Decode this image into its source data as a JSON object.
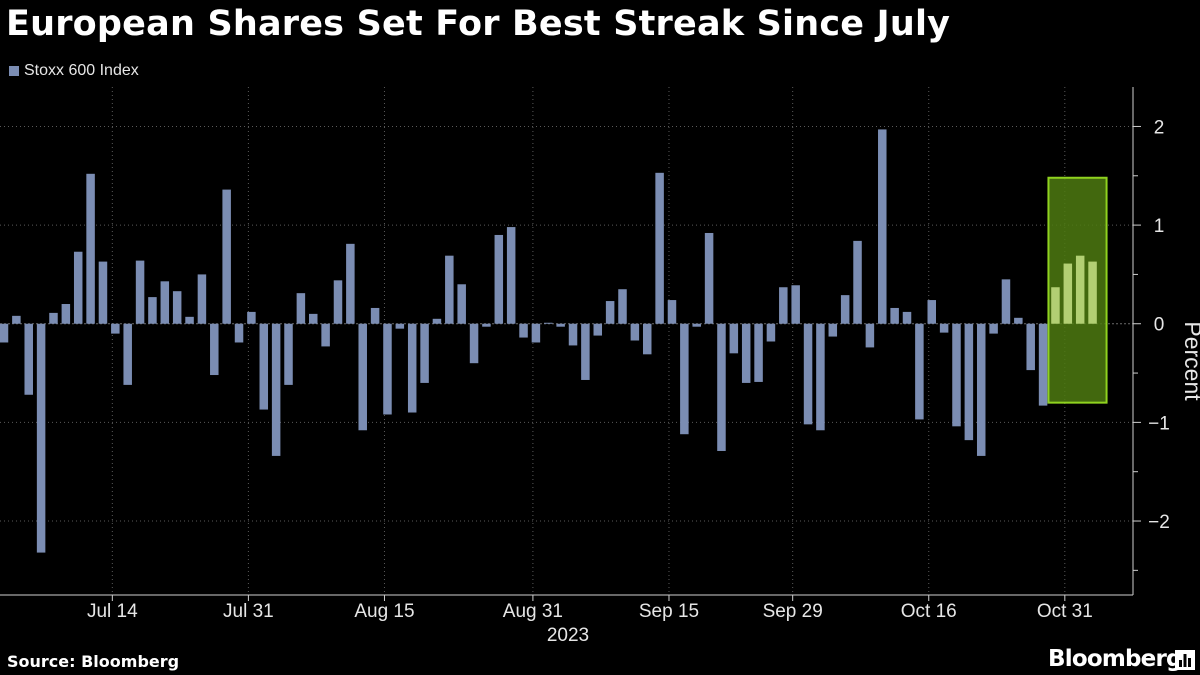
{
  "header": {
    "title": "European Shares Set For Best Streak Since July"
  },
  "footer": {
    "source": "Source: Bloomberg",
    "brand": "Bloomberg"
  },
  "colors": {
    "bar": "#7b8db3",
    "highlight_bar": "#b2cf73",
    "highlight_box_fill": "#4e7a10",
    "highlight_box_stroke": "#8fd21f",
    "background": "#000000"
  },
  "chart_data": {
    "type": "bar",
    "title": "European Shares Set For Best Streak Since July",
    "xlabel": "2023",
    "ylabel": "Percent",
    "ylim": [
      -2.75,
      2.4
    ],
    "yticks": [
      2,
      1,
      0,
      -1,
      -2
    ],
    "series": [
      {
        "name": "Stoxx 600 Index",
        "values": [
          -0.19,
          0.08,
          -0.72,
          -2.32,
          0.11,
          0.2,
          0.73,
          1.52,
          0.63,
          -0.1,
          -0.62,
          0.64,
          0.27,
          0.43,
          0.33,
          0.07,
          0.5,
          -0.52,
          1.36,
          -0.19,
          0.12,
          -0.87,
          -1.34,
          -0.62,
          0.31,
          0.1,
          -0.23,
          0.44,
          0.81,
          -1.08,
          0.16,
          -0.92,
          -0.05,
          -0.9,
          -0.6,
          0.05,
          0.69,
          0.4,
          -0.4,
          -0.03,
          0.9,
          0.98,
          -0.14,
          -0.19,
          0.01,
          -0.03,
          -0.22,
          -0.57,
          -0.12,
          0.23,
          0.35,
          -0.17,
          -0.31,
          1.53,
          0.24,
          -1.12,
          -0.03,
          0.92,
          -1.29,
          -0.3,
          -0.6,
          -0.59,
          -0.18,
          0.37,
          0.39,
          -1.02,
          -1.08,
          -0.13,
          0.29,
          0.84,
          -0.24,
          1.97,
          0.16,
          0.12,
          -0.97,
          0.24,
          -0.09,
          -1.04,
          -1.18,
          -1.34,
          -0.1,
          0.45,
          0.06,
          -0.47,
          -0.83,
          0.37,
          0.61,
          0.69,
          0.63
        ]
      }
    ],
    "highlight": {
      "start_index": 85,
      "end_index": 88,
      "range": [
        -0.8,
        1.48
      ]
    },
    "x_ticks": [
      {
        "label": "Jul 14",
        "index": 9
      },
      {
        "label": "Jul 31",
        "index": 20
      },
      {
        "label": "Aug 15",
        "index": 31
      },
      {
        "label": "Aug 31",
        "index": 43
      },
      {
        "label": "Sep 15",
        "index": 54
      },
      {
        "label": "Sep 29",
        "index": 64
      },
      {
        "label": "Oct 16",
        "index": 75
      },
      {
        "label": "Oct 31",
        "index": 86
      }
    ],
    "grid": true
  }
}
